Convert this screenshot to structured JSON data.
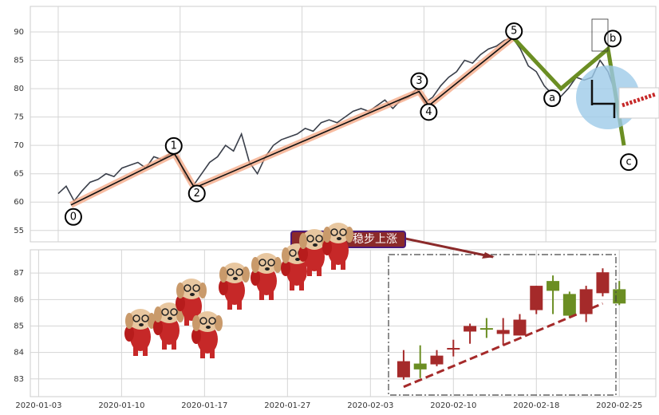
{
  "chart_data": [
    {
      "type": "line",
      "x": [
        0,
        2,
        4,
        6,
        8,
        10,
        12,
        14,
        16,
        18,
        20,
        22,
        24,
        26,
        28,
        30,
        32,
        34,
        36,
        38,
        40,
        42,
        44,
        46,
        48,
        50,
        52,
        54,
        56,
        58,
        60,
        62,
        64,
        66,
        68,
        70,
        72,
        74,
        76,
        78,
        80,
        82,
        84,
        86,
        88,
        90,
        92,
        94,
        96,
        98,
        100,
        102,
        104,
        106,
        108,
        110,
        112,
        114,
        116,
        118,
        120,
        122,
        124,
        126,
        128,
        130,
        132,
        134,
        136,
        138,
        140
      ],
      "values": [
        61.5,
        62.8,
        60.2,
        62,
        63.5,
        64,
        65,
        64.5,
        66,
        66.5,
        67,
        66,
        68,
        67.5,
        68.5,
        68,
        64.5,
        63,
        65,
        67,
        68,
        70,
        69,
        72,
        67,
        65,
        68,
        70,
        71,
        71.5,
        72,
        73,
        72.5,
        74,
        74.5,
        74,
        75,
        76,
        76.5,
        76,
        77,
        78,
        76.5,
        78,
        78.5,
        80,
        77.5,
        78.5,
        80.5,
        82,
        83,
        85,
        84.5,
        86,
        87,
        87.5,
        88.5,
        89,
        87,
        84,
        83,
        80.5,
        79,
        78.5,
        80,
        82,
        81.5,
        82,
        85,
        83,
        79
      ],
      "color": "#3a3f4a",
      "impulse": {
        "labels": [
          "0",
          "1",
          "2",
          "3",
          "4",
          "5"
        ],
        "x": [
          3.2,
          29.2,
          34.2,
          90.6,
          93,
          114.2
        ],
        "values": [
          59.5,
          68.5,
          62.5,
          79.5,
          77,
          89
        ],
        "color": "#111111"
      },
      "correction": {
        "labels": [
          "a",
          "b",
          "c"
        ],
        "x": [
          126.2,
          138,
          142
        ],
        "values": [
          80,
          87,
          70
        ],
        "color": "#6b8e23"
      },
      "xlim": [
        -7,
        150
      ],
      "ylim": [
        53,
        94.5
      ],
      "xticks": [
        0,
        30.6,
        61.2,
        91.8,
        122.4
      ],
      "yticks": [
        55,
        60,
        65,
        70,
        75,
        80,
        85,
        90
      ],
      "grid": true
    },
    {
      "type": "candlestick",
      "x": [
        -3,
        -2,
        -1,
        0,
        1,
        2,
        3,
        4,
        5,
        6,
        7,
        8,
        9,
        10
      ],
      "open": [
        83.06,
        83.58,
        83.55,
        84.12,
        84.79,
        84.92,
        84.7,
        84.64,
        85.6,
        86.7,
        86.21,
        85.45,
        86.24,
        86.39
      ],
      "high": [
        84.09,
        84.27,
        84.09,
        84.48,
        85.09,
        85.3,
        85.3,
        85.45,
        86.52,
        86.91,
        86.3,
        86.52,
        87.18,
        86.7
      ],
      "low": [
        82.97,
        83.03,
        83.48,
        83.85,
        84.33,
        84.55,
        84.27,
        84.64,
        85.45,
        85.45,
        85.3,
        85.15,
        86.12,
        85.79
      ],
      "close": [
        83.67,
        83.36,
        83.88,
        84.17,
        85.0,
        84.9,
        84.85,
        85.24,
        86.52,
        86.33,
        85.39,
        86.39,
        87.03,
        85.85
      ],
      "up_color": "#a52a2a",
      "down_color": "#6b8e23",
      "trend": {
        "x": [
          -3,
          9
        ],
        "values": [
          82.7,
          85.85
        ],
        "color": "#a52a2a"
      },
      "annotation": "稳步上涨",
      "xlim": [
        -25.5,
        12.2
      ],
      "ylim": [
        82.33,
        87.88
      ],
      "xticks": [
        {
          "value": -25,
          "label": "2020-01-03"
        },
        {
          "value": -20,
          "label": "2020-01-10"
        },
        {
          "value": -15,
          "label": "2020-01-17"
        },
        {
          "value": -10,
          "label": "2020-01-27"
        },
        {
          "value": -5,
          "label": "2020-02-03"
        },
        {
          "value": 0,
          "label": "2020-02-10"
        },
        {
          "value": 5,
          "label": "2020-02-18"
        },
        {
          "value": 10,
          "label": "2020-02-25"
        }
      ],
      "yticks": [
        83,
        84,
        85,
        86,
        87
      ],
      "grid": true
    }
  ]
}
